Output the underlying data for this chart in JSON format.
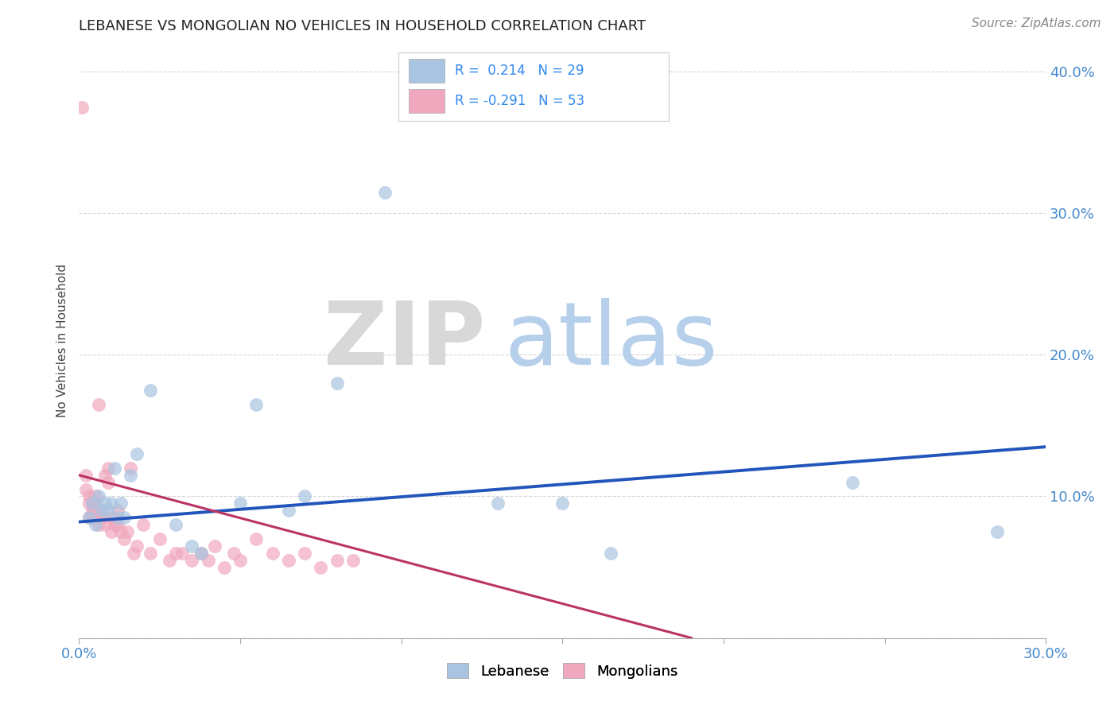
{
  "title": "LEBANESE VS MONGOLIAN NO VEHICLES IN HOUSEHOLD CORRELATION CHART",
  "source": "Source: ZipAtlas.com",
  "ylabel": "No Vehicles in Household",
  "xlim": [
    0.0,
    0.3
  ],
  "ylim": [
    0.0,
    0.42
  ],
  "blue_color": "#a8c4e0",
  "pink_color": "#f0a8be",
  "line_blue_color": "#2255bb",
  "line_pink_color": "#bb3366",
  "background_color": "#ffffff",
  "blue_scatter_x": [
    0.003,
    0.004,
    0.005,
    0.006,
    0.007,
    0.008,
    0.009,
    0.01,
    0.011,
    0.012,
    0.013,
    0.014,
    0.016,
    0.018,
    0.022,
    0.03,
    0.035,
    0.038,
    0.05,
    0.055,
    0.065,
    0.07,
    0.08,
    0.095,
    0.13,
    0.15,
    0.165,
    0.24,
    0.285
  ],
  "blue_scatter_y": [
    0.085,
    0.095,
    0.08,
    0.1,
    0.09,
    0.095,
    0.09,
    0.095,
    0.12,
    0.085,
    0.095,
    0.085,
    0.115,
    0.13,
    0.175,
    0.08,
    0.065,
    0.06,
    0.095,
    0.165,
    0.09,
    0.1,
    0.18,
    0.315,
    0.095,
    0.095,
    0.06,
    0.11,
    0.075
  ],
  "pink_scatter_x": [
    0.001,
    0.002,
    0.002,
    0.003,
    0.003,
    0.003,
    0.004,
    0.004,
    0.004,
    0.005,
    0.005,
    0.005,
    0.005,
    0.006,
    0.006,
    0.006,
    0.007,
    0.007,
    0.008,
    0.008,
    0.009,
    0.009,
    0.01,
    0.01,
    0.011,
    0.012,
    0.012,
    0.013,
    0.014,
    0.015,
    0.016,
    0.017,
    0.018,
    0.02,
    0.022,
    0.025,
    0.028,
    0.03,
    0.032,
    0.035,
    0.038,
    0.04,
    0.042,
    0.045,
    0.048,
    0.05,
    0.055,
    0.06,
    0.065,
    0.07,
    0.075,
    0.08,
    0.085
  ],
  "pink_scatter_y": [
    0.375,
    0.105,
    0.115,
    0.085,
    0.095,
    0.1,
    0.085,
    0.09,
    0.095,
    0.085,
    0.09,
    0.095,
    0.1,
    0.08,
    0.085,
    0.165,
    0.085,
    0.09,
    0.08,
    0.115,
    0.11,
    0.12,
    0.075,
    0.085,
    0.08,
    0.08,
    0.09,
    0.075,
    0.07,
    0.075,
    0.12,
    0.06,
    0.065,
    0.08,
    0.06,
    0.07,
    0.055,
    0.06,
    0.06,
    0.055,
    0.06,
    0.055,
    0.065,
    0.05,
    0.06,
    0.055,
    0.07,
    0.06,
    0.055,
    0.06,
    0.05,
    0.055,
    0.055
  ],
  "blue_line_x": [
    0.0,
    0.3
  ],
  "blue_line_y": [
    0.082,
    0.135
  ],
  "pink_line_x": [
    0.0,
    0.19
  ],
  "pink_line_y": [
    0.115,
    0.0
  ]
}
